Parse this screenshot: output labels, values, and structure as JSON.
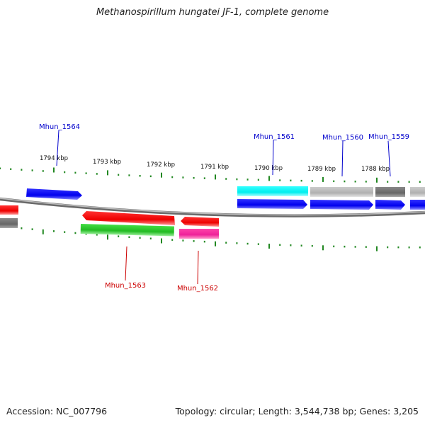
{
  "title": "Methanospirillum hungatei JF-1, complete genome",
  "footer": {
    "accession": "Accession: NC_007796",
    "summary": "Topology: circular; Length: 3,544,738 bp; Genes: 3,205"
  },
  "kbp_labels": [
    "1794 kbp",
    "1793 kbp",
    "1792 kbp",
    "1791 kbp",
    "1790 kbp",
    "1789 kbp",
    "1788 kbp"
  ],
  "gene_labels": {
    "mhun_1564": "Mhun_1564",
    "mhun_1563": "Mhun_1563",
    "mhun_1562": "Mhun_1562",
    "mhun_1561": "Mhun_1561",
    "mhun_1560": "Mhun_1560",
    "mhun_1559": "Mhun_1559"
  },
  "colors": {
    "forward_gene": "#0000ee",
    "reverse_gene": "#ee0000",
    "label_forward": "#0000cc",
    "label_reverse": "#cc0000",
    "cyan": "#00eeee",
    "gray_light": "#b8b8b8",
    "gray_dark": "#707070",
    "green": "#22bb22",
    "magenta": "#ee2299",
    "tick_green": "#228822",
    "backbone": "#888888"
  }
}
